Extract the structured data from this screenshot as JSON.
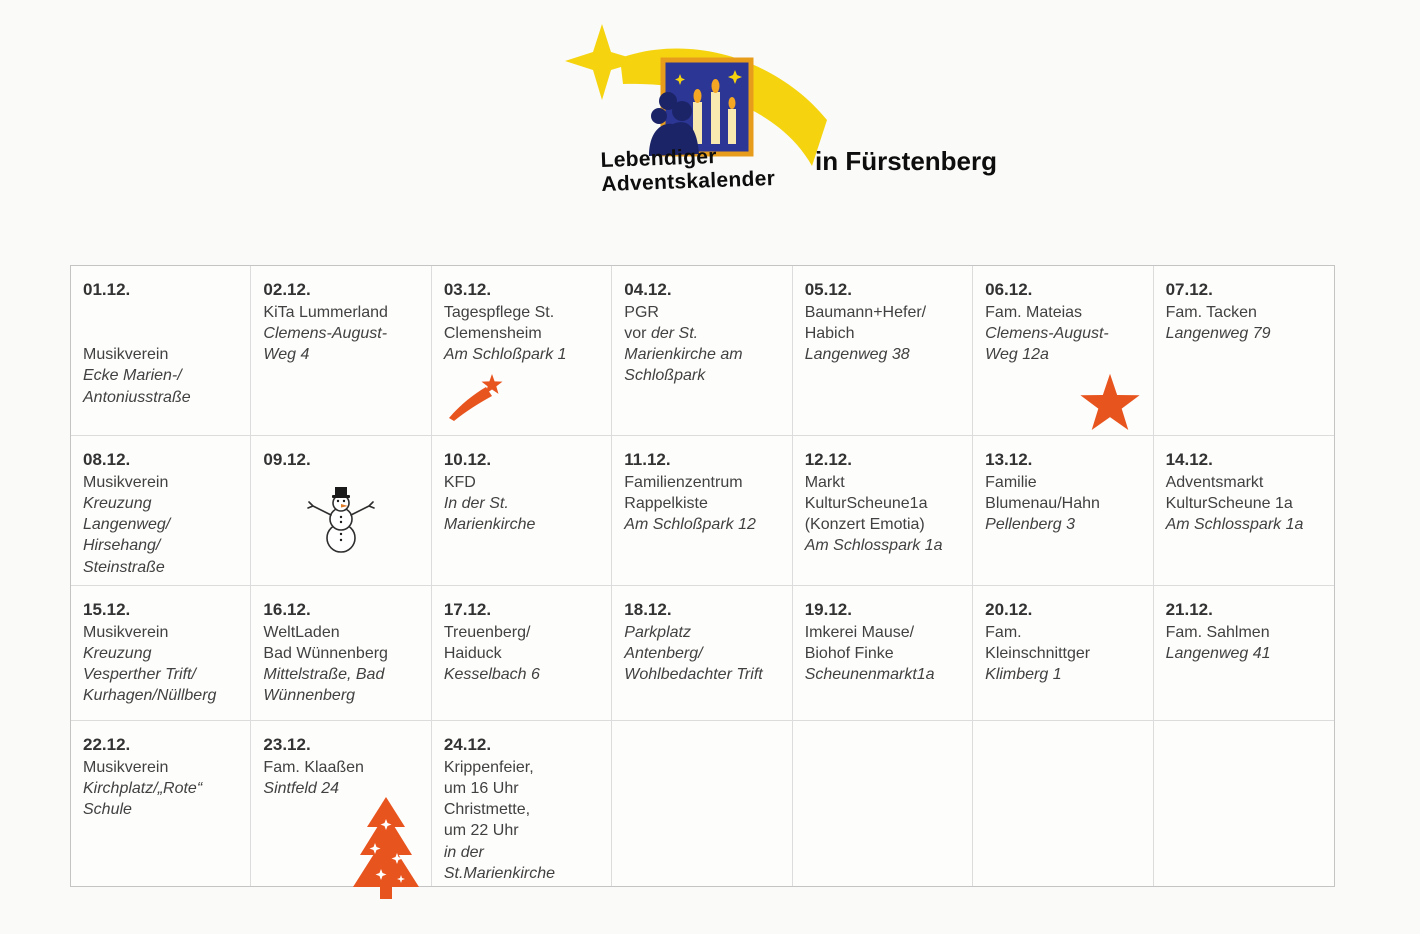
{
  "page": {
    "background": "#fafaf8",
    "accent_orange": "#e8541e",
    "text_color": "#414141",
    "grid_line_color": "#dcdcdc"
  },
  "header": {
    "logo_line1": "Lebendiger",
    "logo_line2": "Adventskalender",
    "title_suffix": "in Fürstenberg",
    "logo_icon": "adventskalender-logo-icon"
  },
  "calendar": {
    "columns": 7,
    "rows": 4,
    "cells": [
      {
        "date": "01.12.",
        "icon": null,
        "lines": [
          [],
          [],
          [
            {
              "t": "Musikverein",
              "i": false
            }
          ],
          [
            {
              "t": "Ecke Marien-/",
              "i": true
            }
          ],
          [
            {
              "t": "Antoniusstraße",
              "i": true
            }
          ]
        ]
      },
      {
        "date": "02.12.",
        "icon": null,
        "lines": [
          [
            {
              "t": "KiTa Lummerland",
              "i": false
            }
          ],
          [
            {
              "t": "Clemens-August-",
              "i": true
            }
          ],
          [
            {
              "t": "Weg 4",
              "i": true
            }
          ]
        ]
      },
      {
        "date": "03.12.",
        "icon": "shooting-star",
        "lines": [
          [
            {
              "t": "Tagespflege St.",
              "i": false
            }
          ],
          [
            {
              "t": "Clemensheim",
              "i": false
            }
          ],
          [
            {
              "t": "Am Schloßpark 1",
              "i": true
            }
          ]
        ]
      },
      {
        "date": "04.12.",
        "icon": null,
        "lines": [
          [
            {
              "t": "PGR",
              "i": false
            }
          ],
          [
            {
              "t": "vor ",
              "i": false
            },
            {
              "t": "der St.",
              "i": true
            }
          ],
          [
            {
              "t": "Marienkirche am",
              "i": true
            }
          ],
          [
            {
              "t": "Schloßpark",
              "i": true
            }
          ]
        ]
      },
      {
        "date": "05.12.",
        "icon": null,
        "lines": [
          [
            {
              "t": "Baumann+Hefer/",
              "i": false
            }
          ],
          [
            {
              "t": "Habich",
              "i": false
            }
          ],
          [
            {
              "t": "Langenweg 38",
              "i": true
            }
          ]
        ]
      },
      {
        "date": "06.12.",
        "icon": "big-star",
        "lines": [
          [
            {
              "t": "Fam. Mateias",
              "i": false
            }
          ],
          [
            {
              "t": "Clemens-August-",
              "i": true
            }
          ],
          [
            {
              "t": "Weg 12a",
              "i": true
            }
          ]
        ]
      },
      {
        "date": "07.12.",
        "icon": null,
        "lines": [
          [
            {
              "t": "Fam. Tacken",
              "i": false
            }
          ],
          [
            {
              "t": "Langenweg 79",
              "i": true
            }
          ]
        ]
      },
      {
        "date": "08.12.",
        "icon": null,
        "lines": [
          [
            {
              "t": "Musikverein",
              "i": false
            }
          ],
          [
            {
              "t": "Kreuzung",
              "i": true
            }
          ],
          [
            {
              "t": "Langenweg/",
              "i": true
            }
          ],
          [
            {
              "t": "Hirsehang/",
              "i": true
            }
          ],
          [
            {
              "t": "Steinstraße",
              "i": true
            }
          ]
        ]
      },
      {
        "date": "09.12.",
        "icon": "snowman",
        "lines": []
      },
      {
        "date": "10.12.",
        "icon": null,
        "lines": [
          [
            {
              "t": "KFD",
              "i": false
            }
          ],
          [
            {
              "t": "In der St.",
              "i": true
            }
          ],
          [
            {
              "t": "Marienkirche",
              "i": true
            }
          ]
        ]
      },
      {
        "date": "11.12.",
        "icon": null,
        "lines": [
          [
            {
              "t": "Familienzentrum",
              "i": false
            }
          ],
          [
            {
              "t": "Rappelkiste",
              "i": false
            }
          ],
          [
            {
              "t": "Am Schloßpark 12",
              "i": true
            }
          ]
        ]
      },
      {
        "date": "12.12.",
        "icon": null,
        "lines": [
          [
            {
              "t": "Markt",
              "i": false
            }
          ],
          [
            {
              "t": "KulturScheune1a",
              "i": false
            }
          ],
          [
            {
              "t": "(Konzert Emotia)",
              "i": false
            }
          ],
          [
            {
              "t": "Am Schlosspark 1a",
              "i": true
            }
          ]
        ]
      },
      {
        "date": "13.12.",
        "icon": null,
        "lines": [
          [
            {
              "t": "Familie",
              "i": false
            }
          ],
          [
            {
              "t": "Blumenau/Hahn",
              "i": false
            }
          ],
          [
            {
              "t": "Pellenberg 3",
              "i": true
            }
          ]
        ]
      },
      {
        "date": "14.12.",
        "icon": null,
        "lines": [
          [
            {
              "t": "Adventsmarkt",
              "i": false
            }
          ],
          [
            {
              "t": "KulturScheune 1a",
              "i": false
            }
          ],
          [
            {
              "t": "Am Schlosspark 1a",
              "i": true
            }
          ]
        ]
      },
      {
        "date": "15.12.",
        "icon": null,
        "lines": [
          [
            {
              "t": "Musikverein",
              "i": false
            }
          ],
          [
            {
              "t": "Kreuzung",
              "i": true
            }
          ],
          [
            {
              "t": "Vesperther Trift/",
              "i": true
            }
          ],
          [
            {
              "t": "Kurhagen/Nüllberg",
              "i": true
            }
          ]
        ]
      },
      {
        "date": "16.12.",
        "icon": null,
        "lines": [
          [
            {
              "t": "WeltLaden",
              "i": false
            }
          ],
          [
            {
              "t": "Bad Wünnenberg",
              "i": false
            }
          ],
          [
            {
              "t": "Mittelstraße,  Bad",
              "i": true
            }
          ],
          [
            {
              "t": "Wünnenberg",
              "i": true
            }
          ]
        ]
      },
      {
        "date": "17.12.",
        "icon": null,
        "lines": [
          [
            {
              "t": "Treuenberg/",
              "i": false
            }
          ],
          [
            {
              "t": "Haiduck",
              "i": false
            }
          ],
          [
            {
              "t": "Kesselbach 6",
              "i": true
            }
          ]
        ]
      },
      {
        "date": "18.12.",
        "icon": null,
        "lines": [
          [
            {
              "t": "Parkplatz",
              "i": true
            }
          ],
          [
            {
              "t": "Antenberg/",
              "i": true
            }
          ],
          [
            {
              "t": "Wohlbedachter Trift",
              "i": true
            }
          ]
        ]
      },
      {
        "date": "19.12.",
        "icon": null,
        "lines": [
          [
            {
              "t": "Imkerei Mause/",
              "i": false
            }
          ],
          [
            {
              "t": "Biohof Finke",
              "i": false
            }
          ],
          [
            {
              "t": "Scheunenmarkt1a",
              "i": true
            }
          ]
        ]
      },
      {
        "date": "20.12.",
        "icon": null,
        "lines": [
          [
            {
              "t": "Fam.",
              "i": false
            }
          ],
          [
            {
              "t": "Kleinschnittger",
              "i": false
            }
          ],
          [
            {
              "t": "Klimberg 1",
              "i": true
            }
          ]
        ]
      },
      {
        "date": "21.12.",
        "icon": null,
        "lines": [
          [
            {
              "t": "Fam. Sahlmen",
              "i": false
            }
          ],
          [
            {
              "t": "Langenweg 41",
              "i": true
            }
          ]
        ]
      },
      {
        "date": "22.12.",
        "icon": null,
        "lines": [
          [
            {
              "t": "Musikverein",
              "i": false
            }
          ],
          [
            {
              "t": "Kirchplatz/„Rote“",
              "i": true
            }
          ],
          [
            {
              "t": "Schule",
              "i": true
            }
          ]
        ]
      },
      {
        "date": "23.12.",
        "icon": "christmas-tree",
        "lines": [
          [
            {
              "t": "Fam. Klaaßen",
              "i": false
            }
          ],
          [
            {
              "t": "Sintfeld 24",
              "i": true
            }
          ]
        ]
      },
      {
        "date": "24.12.",
        "icon": null,
        "lines": [
          [
            {
              "t": "Krippenfeier,",
              "i": false
            }
          ],
          [
            {
              "t": "um 16 Uhr",
              "i": false
            }
          ],
          [
            {
              "t": "Christmette,",
              "i": false
            }
          ],
          [
            {
              "t": "um 22 Uhr",
              "i": false
            }
          ],
          [
            {
              "t": "in der",
              "i": true
            }
          ],
          [
            {
              "t": "St.Marienkirche",
              "i": true
            }
          ]
        ]
      },
      {
        "date": null,
        "icon": null,
        "lines": []
      },
      {
        "date": null,
        "icon": null,
        "lines": []
      },
      {
        "date": null,
        "icon": null,
        "lines": []
      },
      {
        "date": null,
        "icon": null,
        "lines": []
      }
    ]
  }
}
